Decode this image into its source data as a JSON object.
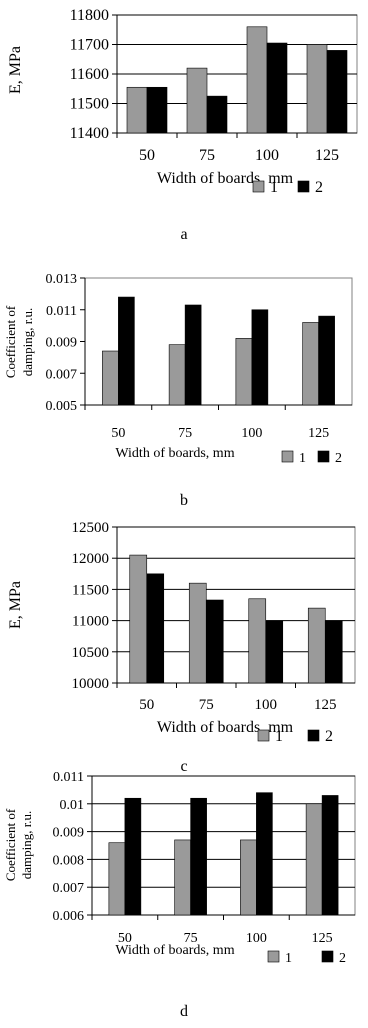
{
  "colors": {
    "series1": "#9a9a9a",
    "series2": "#000000",
    "grid": "#000000",
    "frame": "#808080"
  },
  "chart_data": [
    {
      "type": "bar",
      "categories": [
        "50",
        "75",
        "100",
        "125"
      ],
      "series": [
        {
          "name": "1",
          "values": [
            11555,
            11620,
            11760,
            11700
          ]
        },
        {
          "name": "2",
          "values": [
            11555,
            11525,
            11705,
            11680
          ]
        }
      ],
      "ylabel": "E, MPa",
      "xlabel": "Width of boards, mm",
      "yticks": [
        "11400",
        "11500",
        "11600",
        "11700",
        "11800"
      ],
      "ylim": [
        11400,
        11800
      ],
      "grid": true,
      "legend": "bottom-right",
      "caption": "a"
    },
    {
      "type": "bar",
      "categories": [
        "50",
        "75",
        "100",
        "125"
      ],
      "series": [
        {
          "name": "1",
          "values": [
            0.0084,
            0.0088,
            0.0092,
            0.0102
          ]
        },
        {
          "name": "2",
          "values": [
            0.0118,
            0.0113,
            0.011,
            0.0106
          ]
        }
      ],
      "ylabel": "Coefficient of damping, r.u.",
      "xlabel": "Width of boards, mm",
      "yticks": [
        "0.005",
        "0.007",
        "0.009",
        "0.011",
        "0.013"
      ],
      "ylim": [
        0.005,
        0.013
      ],
      "grid": false,
      "legend": "bottom-right",
      "caption": "b"
    },
    {
      "type": "bar",
      "categories": [
        "50",
        "75",
        "100",
        "125"
      ],
      "series": [
        {
          "name": "1",
          "values": [
            12050,
            11600,
            11350,
            11200
          ]
        },
        {
          "name": "2",
          "values": [
            11750,
            11330,
            11000,
            11000
          ]
        }
      ],
      "ylabel": "E, MPa",
      "xlabel": "Width of boards, mm",
      "yticks": [
        "10000",
        "10500",
        "11000",
        "11500",
        "12000",
        "12500"
      ],
      "ylim": [
        10000,
        12500
      ],
      "grid": true,
      "legend": "bottom-right",
      "caption": "c"
    },
    {
      "type": "bar",
      "categories": [
        "50",
        "75",
        "100",
        "125"
      ],
      "series": [
        {
          "name": "1",
          "values": [
            0.0086,
            0.0087,
            0.0087,
            0.01
          ]
        },
        {
          "name": "2",
          "values": [
            0.0102,
            0.0102,
            0.0104,
            0.0103
          ]
        }
      ],
      "ylabel": "Coefficient of damping, r.u.",
      "xlabel": "Width of boards, mm",
      "yticks": [
        "0.006",
        "0.007",
        "0.008",
        "0.009",
        "0.01",
        "0.011"
      ],
      "ylim": [
        0.006,
        0.011
      ],
      "grid": true,
      "legend": "bottom-right",
      "caption": "d"
    }
  ]
}
